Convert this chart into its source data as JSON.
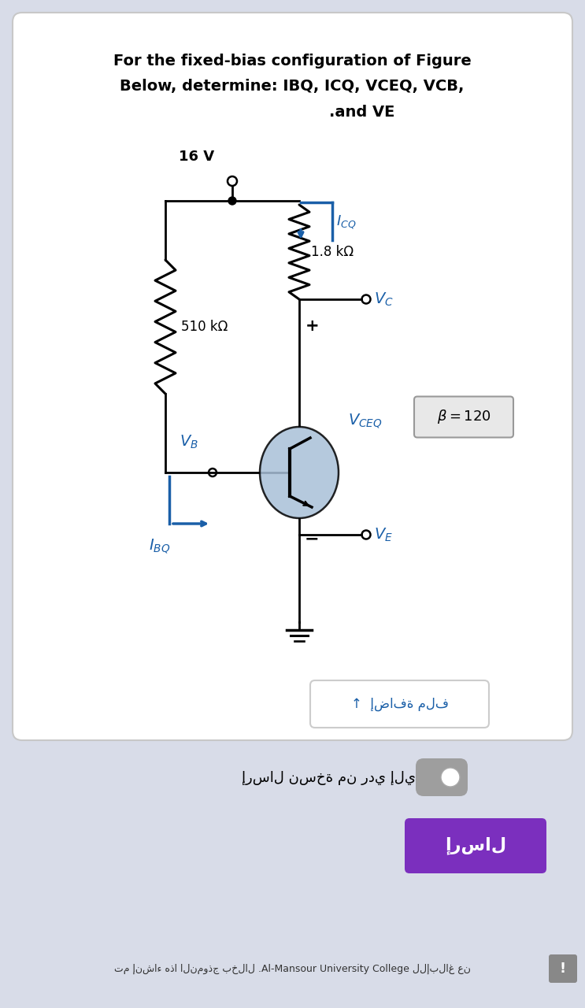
{
  "bg_outer": "#d8dce8",
  "bg_card": "#ffffff",
  "title_line1": "For the fixed-bias configuration of Figure",
  "title_line2": "Below, determine: IBQ, ICQ, VCEQ, VCB,",
  "title_line3": ".and VE",
  "voltage_label": "16 V",
  "r1_label": "510 kΩ",
  "r2_label": "1.8 kΩ",
  "circuit_color": "#000000",
  "blue_color": "#1a5fa8",
  "transistor_fill": "#a8c0d8",
  "beta_box_fill": "#e8e8e8",
  "purple_button": "#7b2fbe",
  "add_file_text": "إضافة ملف",
  "send_copy_text": "إرسال نسخة من ردي إليّ.",
  "send_button_text": "إرسال",
  "footer_text": "تم إنشاء هذا النموذج بخلال .Al-Mansour University College للإبلاغ عن"
}
